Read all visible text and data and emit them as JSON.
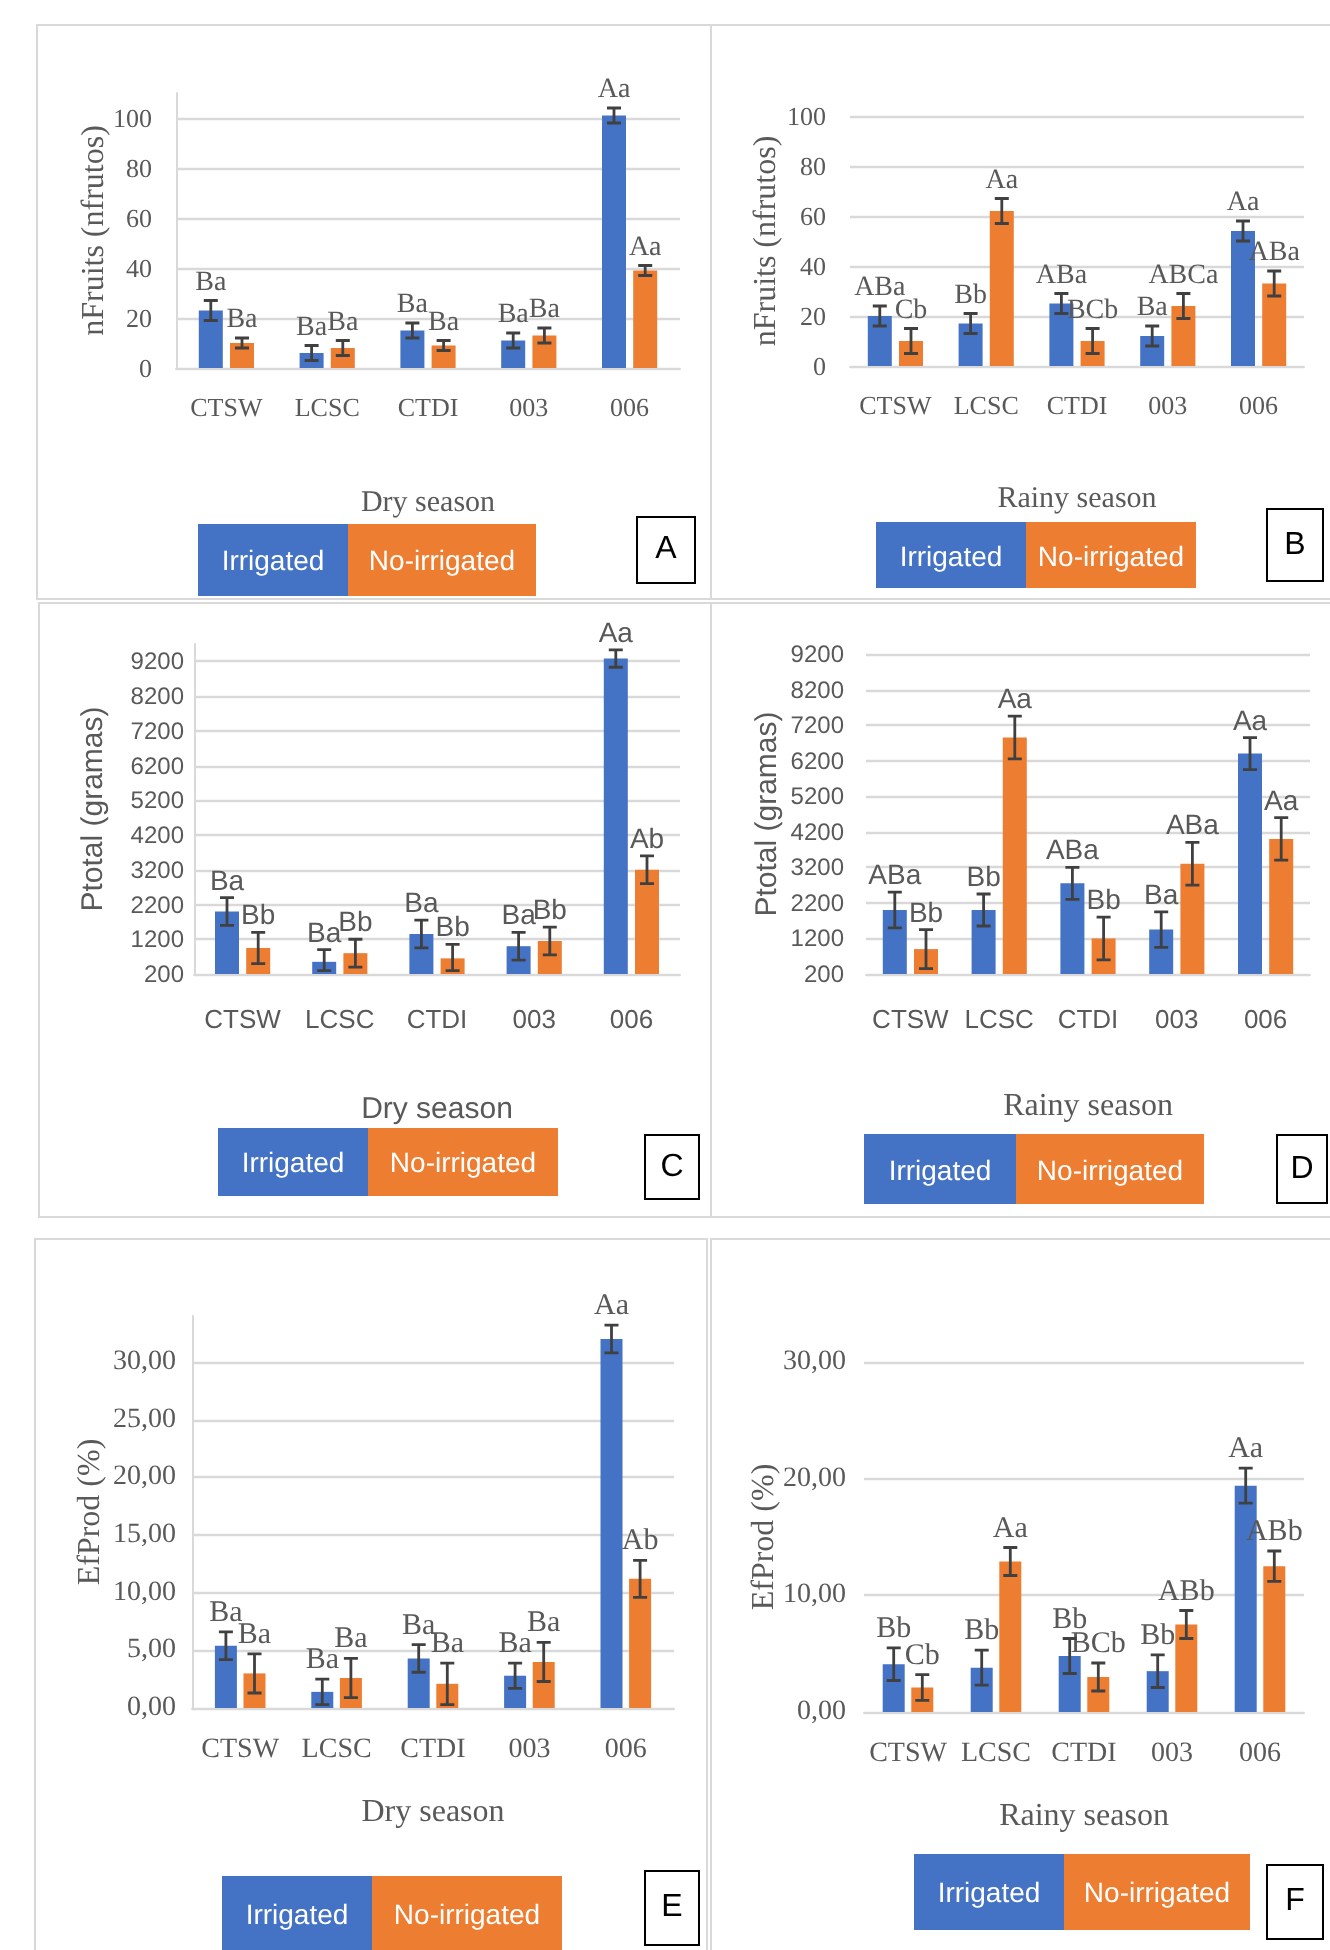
{
  "chart_data": [
    {
      "type": "bar",
      "xlabel": "Dry season",
      "ylabel": "nFruits (nfrutos)",
      "categories": [
        "CTSW",
        "LCSC",
        "CTDI",
        "003",
        "006"
      ],
      "series": [
        {
          "name": "Irrigated",
          "color": "#4472c4",
          "values": [
            23,
            6,
            15,
            11,
            101
          ],
          "errors": [
            4,
            3,
            3,
            3,
            3
          ],
          "value_labels": [
            "Ba",
            "Ba",
            "Ba",
            "Ba",
            "Aa"
          ]
        },
        {
          "name": "No-irrigated",
          "color": "#ed7d31",
          "values": [
            10,
            8,
            9,
            13,
            39
          ],
          "errors": [
            2,
            3,
            2,
            3,
            2
          ],
          "value_labels": [
            "Ba",
            "Ba",
            "Ba",
            "Ba",
            "Aa"
          ]
        }
      ],
      "ylim": [
        0,
        110
      ],
      "yticks": [
        0,
        20,
        40,
        60,
        80,
        100
      ],
      "grid": "y",
      "legend": "bottom",
      "annotations": [
        "A"
      ]
    },
    {
      "type": "bar",
      "xlabel": "Rainy season",
      "ylabel": "nFruits (nfrutos)",
      "categories": [
        "CTSW",
        "LCSC",
        "CTDI",
        "003",
        "006"
      ],
      "series": [
        {
          "name": "Irrigated",
          "color": "#4472c4",
          "values": [
            20,
            17,
            25,
            12,
            54
          ],
          "errors": [
            4,
            4,
            4,
            4,
            4
          ],
          "value_labels": [
            "ABa",
            "Bb",
            "ABa",
            "Ba",
            "Aa"
          ]
        },
        {
          "name": "No-irrigated",
          "color": "#ed7d31",
          "values": [
            10,
            62,
            10,
            24,
            33
          ],
          "errors": [
            5,
            5,
            5,
            5,
            5
          ],
          "value_labels": [
            "Cb",
            "Aa",
            "BCb",
            "ABCa",
            "ABa"
          ]
        }
      ],
      "ylim": [
        0,
        100
      ],
      "yticks": [
        0,
        20,
        40,
        60,
        80,
        100
      ],
      "grid": "y",
      "legend": "bottom",
      "annotations": [
        "B"
      ]
    },
    {
      "type": "bar",
      "xlabel": "Dry season",
      "ylabel": "Ptotal (gramas)",
      "categories": [
        "CTSW",
        "LCSC",
        "CTDI",
        "003",
        "006"
      ],
      "series": [
        {
          "name": "Irrigated",
          "color": "#4472c4",
          "values": [
            2000,
            550,
            1350,
            1000,
            9280
          ],
          "errors": [
            400,
            [
              300,
              900
            ],
            400,
            400,
            250
          ],
          "value_labels": [
            "Ba",
            "Ba",
            "Ba",
            "Ba",
            "Aa"
          ]
        },
        {
          "name": "No-irrigated",
          "color": "#ed7d31",
          "values": [
            950,
            800,
            650,
            1150,
            3200
          ],
          "errors": [
            450,
            400,
            [
              300,
              1050
            ],
            400,
            400
          ],
          "value_labels": [
            "Bb",
            "Bb",
            "Bb",
            "Bb",
            "Ab"
          ]
        }
      ],
      "ylim": [
        200,
        9700
      ],
      "yticks": [
        200,
        1200,
        2200,
        3200,
        4200,
        5200,
        6200,
        7200,
        8200,
        9200
      ],
      "grid": "y",
      "legend": "bottom",
      "annotations": [
        "C"
      ]
    },
    {
      "type": "bar",
      "xlabel": "Rainy season",
      "ylabel": "Ptotal (gramas)",
      "categories": [
        "CTSW",
        "LCSC",
        "CTDI",
        "003",
        "006"
      ],
      "series": [
        {
          "name": "Irrigated",
          "color": "#4472c4",
          "values": [
            2000,
            2000,
            2750,
            1450,
            6400
          ],
          "errors": [
            500,
            450,
            450,
            500,
            450
          ],
          "value_labels": [
            "ABa",
            "Bb",
            "ABa",
            "Ba",
            "Aa"
          ]
        },
        {
          "name": "No-irrigated",
          "color": "#ed7d31",
          "values": [
            900,
            6850,
            1200,
            3300,
            4000
          ],
          "errors": [
            550,
            600,
            600,
            600,
            600
          ],
          "value_labels": [
            "Bb",
            "Aa",
            "Bb",
            "ABa",
            "Aa"
          ]
        }
      ],
      "ylim": [
        200,
        9200
      ],
      "yticks": [
        200,
        1200,
        2200,
        3200,
        4200,
        5200,
        6200,
        7200,
        8200,
        9200
      ],
      "grid": "y",
      "legend": "bottom",
      "annotations": [
        "D"
      ]
    },
    {
      "type": "bar",
      "xlabel": "Dry season",
      "ylabel": "EfProd (%)",
      "categories": [
        "CTSW",
        "LCSC",
        "CTDI",
        "003",
        "006"
      ],
      "series": [
        {
          "name": "Irrigated",
          "color": "#4472c4",
          "values": [
            5.4,
            1.4,
            4.3,
            2.8,
            32
          ],
          "errors": [
            1.2,
            1.1,
            1.2,
            1.1,
            1.2
          ],
          "value_labels": [
            "Ba",
            "Ba",
            "Ba",
            "Ba",
            "Aa"
          ]
        },
        {
          "name": "No-irrigated",
          "color": "#ed7d31",
          "values": [
            3.0,
            2.6,
            2.1,
            4.0,
            11.2
          ],
          "errors": [
            1.7,
            1.7,
            1.8,
            1.7,
            1.6
          ],
          "value_labels": [
            "Ba",
            "Ba",
            "Ba",
            "Ba",
            "Ab"
          ]
        }
      ],
      "ylim": [
        0,
        34
      ],
      "yticks": [
        {
          "value": 0,
          "label": "0,00"
        },
        {
          "value": 5,
          "label": "5,00"
        },
        {
          "value": 10,
          "label": "10,00"
        },
        {
          "value": 15,
          "label": "15,00"
        },
        {
          "value": 20,
          "label": "20,00"
        },
        {
          "value": 25,
          "label": "25,00"
        },
        {
          "value": 30,
          "label": "30,00"
        }
      ],
      "grid": "y",
      "legend": "bottom",
      "annotations": [
        "E"
      ]
    },
    {
      "type": "bar",
      "xlabel": "Rainy season",
      "ylabel": "EfProd (%)",
      "categories": [
        "CTSW",
        "LCSC",
        "CTDI",
        "003",
        "006"
      ],
      "series": [
        {
          "name": "Irrigated",
          "color": "#4472c4",
          "values": [
            4.1,
            3.8,
            4.8,
            3.5,
            19.4
          ],
          "errors": [
            1.4,
            1.5,
            1.5,
            1.4,
            1.5
          ],
          "value_labels": [
            "Bb",
            "Bb",
            "Bb",
            "Bb",
            "Aa"
          ]
        },
        {
          "name": "No-irrigated",
          "color": "#ed7d31",
          "values": [
            2.1,
            12.9,
            3.0,
            7.5,
            12.5
          ],
          "errors": [
            1.1,
            1.2,
            1.2,
            1.2,
            1.3
          ],
          "value_labels": [
            "Cb",
            "Aa",
            "BCb",
            "ABb",
            "ABb"
          ]
        }
      ],
      "ylim": [
        0,
        30
      ],
      "yticks": [
        {
          "value": 0,
          "label": "0,00"
        },
        {
          "value": 10,
          "label": "10,00"
        },
        {
          "value": 20,
          "label": "20,00"
        },
        {
          "value": 30,
          "label": "30,00"
        }
      ],
      "grid": "y",
      "legend": "bottom",
      "annotations": [
        "F"
      ]
    }
  ]
}
